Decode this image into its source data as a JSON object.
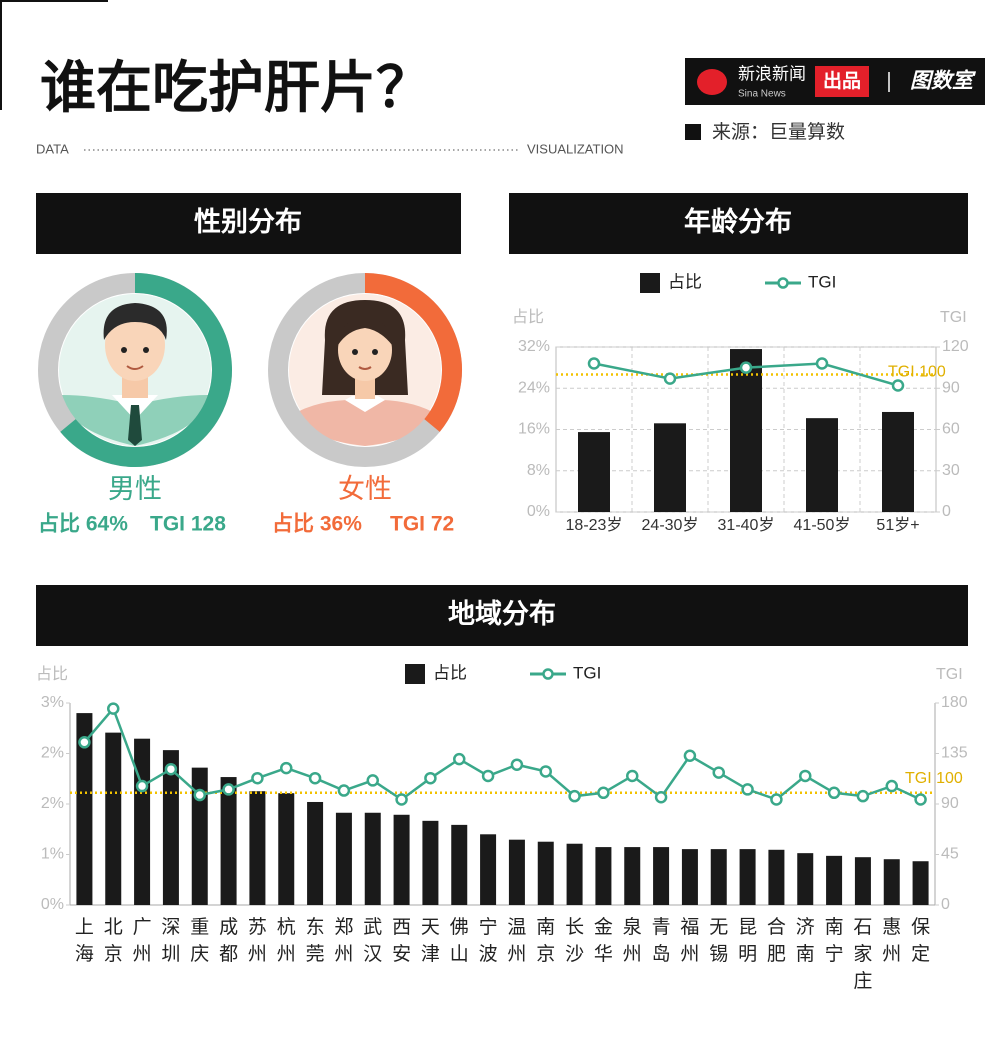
{
  "header": {
    "title": "谁在吃护肝片？",
    "left_tag": "DATA",
    "right_tag": "VISUALIZATION",
    "brand": "新浪新闻",
    "brand_en": "Sina News",
    "badge": "出品",
    "partner": "图数室",
    "source": "来源：巨量算数"
  },
  "chart_data": [
    {
      "type": "donut",
      "title": "性别分布",
      "categories": [
        "男性",
        "女性"
      ],
      "values": [
        64,
        36
      ],
      "value_labels": [
        "占比 64%",
        "占比 36%"
      ],
      "tgi": [
        128,
        72
      ],
      "tgi_labels": [
        "TGI 128",
        "TGI 72"
      ],
      "colors": [
        "#3aa88a",
        "#f26b3a"
      ]
    },
    {
      "type": "bar-line",
      "title": "年龄分布",
      "categories": [
        "18-23岁",
        "24-30岁",
        "31-40岁",
        "41-50岁",
        "51岁+"
      ],
      "series": [
        {
          "name": "占比",
          "color": "#1a1a1a",
          "values": [
            15.5,
            17.2,
            31.6,
            18.2,
            19.4
          ]
        },
        {
          "name": "TGI",
          "color": "#3aa88a",
          "axis": "y2",
          "values": [
            108,
            97,
            105,
            108,
            92
          ]
        }
      ],
      "ylabel": "占比",
      "y2label": "TGI",
      "ylim": [
        0,
        32
      ],
      "yticks": [
        {
          "value": 0,
          "label": "0%"
        },
        {
          "value": 8,
          "label": "8%"
        },
        {
          "value": 16,
          "label": "16%"
        },
        {
          "value": 24,
          "label": "24%"
        },
        {
          "value": 32,
          "label": "32%"
        }
      ],
      "y2lim": [
        0,
        120
      ],
      "y2ticks": [
        0,
        30,
        60,
        90,
        120
      ],
      "grid": true,
      "reference_line": {
        "value": 100,
        "label": "TGI 100",
        "color": "#f2c200"
      }
    },
    {
      "type": "bar-line",
      "title": "地域分布",
      "categories": [
        "上海",
        "北京",
        "广州",
        "深圳",
        "重庆",
        "成都",
        "苏州",
        "杭州",
        "东莞",
        "郑州",
        "武汉",
        "西安",
        "天津",
        "佛山",
        "宁波",
        "温州",
        "南京",
        "长沙",
        "金华",
        "泉州",
        "青岛",
        "福州",
        "无锡",
        "昆明",
        "合肥",
        "济南",
        "南宁",
        "石家庄",
        "惠州",
        "保定"
      ],
      "series": [
        {
          "name": "占比",
          "color": "#1a1a1a",
          "values": [
            2.85,
            2.56,
            2.47,
            2.3,
            2.04,
            1.9,
            1.69,
            1.66,
            1.53,
            1.37,
            1.37,
            1.34,
            1.25,
            1.19,
            1.05,
            0.97,
            0.94,
            0.91,
            0.86,
            0.86,
            0.86,
            0.83,
            0.83,
            0.83,
            0.82,
            0.77,
            0.73,
            0.71,
            0.68,
            0.65
          ]
        },
        {
          "name": "TGI",
          "color": "#3aa88a",
          "axis": "y2",
          "values": [
            145,
            175,
            106,
            121,
            98,
            103,
            113,
            122,
            113,
            102,
            111,
            94,
            113,
            130,
            115,
            125,
            119,
            97,
            100,
            115,
            96,
            133,
            118,
            103,
            94,
            115,
            100,
            97,
            106,
            94
          ]
        }
      ],
      "ylabel": "占比",
      "y2label": "TGI",
      "ylim": [
        0,
        3
      ],
      "yticks": [
        {
          "value": 0,
          "label": "0%"
        },
        {
          "value": 0.75,
          "label": "1%"
        },
        {
          "value": 1.5,
          "label": "2%"
        },
        {
          "value": 2.25,
          "label": "2%"
        },
        {
          "value": 3,
          "label": "3%"
        }
      ],
      "y2lim": [
        0,
        180
      ],
      "y2ticks": [
        0,
        45,
        90,
        135,
        180
      ],
      "grid": false,
      "reference_line": {
        "value": 100,
        "label": "TGI 100",
        "color": "#f2c200"
      }
    }
  ]
}
